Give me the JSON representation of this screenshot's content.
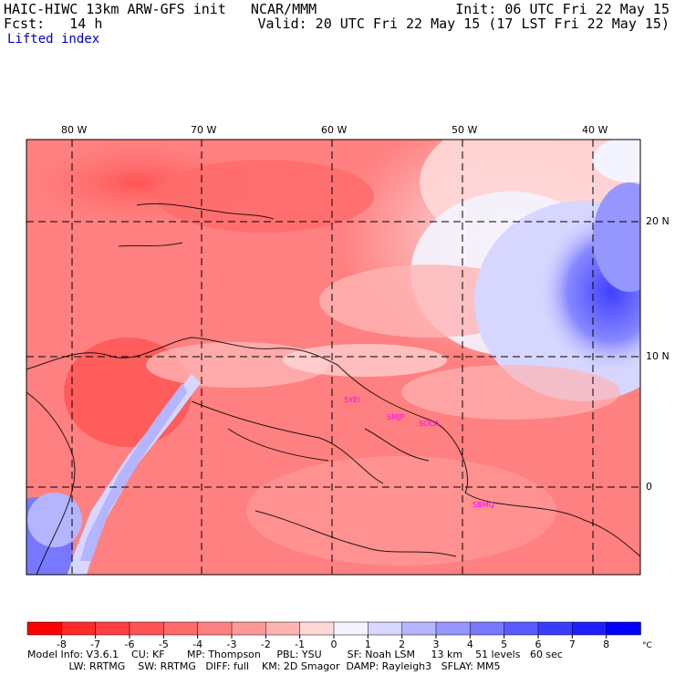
{
  "header": {
    "left1": "HAIC-HIWC 13km ARW-GFS init   NCAR/MMM",
    "left2": "Fcst:   14 h",
    "right1": "Init: 06 UTC Fri 22 May 15",
    "right2": "Valid: 20 UTC Fri 22 May 15 (17 LST Fri 22 May 15)",
    "field": "Lifted index"
  },
  "map": {
    "lon_labels": [
      "80 W",
      "70 W",
      "60 W",
      "50 W",
      "40 W"
    ],
    "lat_labels": [
      "20 N",
      "10 N",
      "0"
    ],
    "stations": [
      "SYEI",
      "SMJP",
      "SOCA",
      "SBMQ"
    ]
  },
  "colorbar": {
    "ticks": [
      "-8",
      "-7",
      "-6",
      "-5",
      "-4",
      "-3",
      "-2",
      "-1",
      "0",
      "1",
      "2",
      "3",
      "4",
      "5",
      "6",
      "7",
      "8"
    ],
    "unit": "°C",
    "colors": [
      "#ff0000",
      "#ff2a2a",
      "#ff3f3f",
      "#ff5353",
      "#ff6a6a",
      "#ff8080",
      "#ff9898",
      "#ffb4b4",
      "#ffd8d8",
      "#f4f4ff",
      "#d6d6ff",
      "#b4b4ff",
      "#9696ff",
      "#7878ff",
      "#5a5aff",
      "#3c3cff",
      "#1e1eff",
      "#0000ff"
    ]
  },
  "footer": {
    "line1": "Model Info: V3.6.1    CU: KF       MP: Thompson     PBL: YSU        SF: Noah LSM     13 km    51 levels   60 sec",
    "line2": "             LW: RRTMG    SW: RRTMG   DIFF: full    KM: 2D Smagor  DAMP: Rayleigh3   SFLAY: MM5"
  }
}
